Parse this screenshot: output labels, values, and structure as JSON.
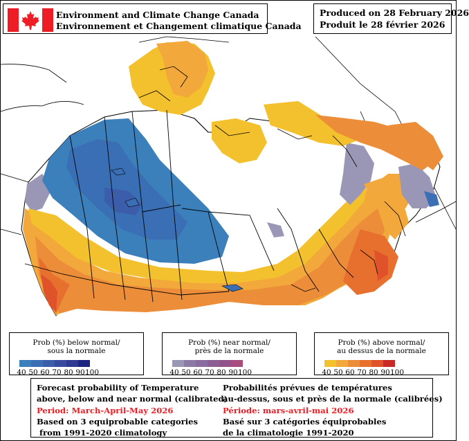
{
  "header": {
    "agency_en": "Environment and Climate Change Canada",
    "agency_fr": "Environnement et Changement climatique Canada",
    "produced_en": "Produced on 28 February 2026",
    "produced_fr": "Produit le 28 février 2026"
  },
  "legends": {
    "below": {
      "title_line1": "Prob (%) below normal/",
      "title_line2": "sous la normale",
      "ticks": [
        "40",
        "50",
        "60",
        "70",
        "80",
        "90",
        "100"
      ],
      "colors": [
        "#3b7fbb",
        "#3a6fb5",
        "#3c5daa",
        "#374aa0",
        "#2e3a92",
        "#1c2680"
      ]
    },
    "near": {
      "title_line1": "Prob (%) near normal/",
      "title_line2": "près de la normale",
      "ticks": [
        "40",
        "50",
        "60",
        "70",
        "80",
        "90",
        "100"
      ],
      "colors": [
        "#9a97b6",
        "#8b7aa6",
        "#8a6da0",
        "#8b5f94",
        "#92538a",
        "#a84b7d"
      ]
    },
    "above": {
      "title_line1": "Prob (%) above normal/",
      "title_line2": "au dessus de la normale",
      "ticks": [
        "40",
        "50",
        "60",
        "70",
        "80",
        "90",
        "100"
      ],
      "colors": [
        "#f2c12d",
        "#f2a83a",
        "#ec8d3a",
        "#e8702f",
        "#e0522a",
        "#c92a26"
      ]
    }
  },
  "map_colors": {
    "above_40": "#f2c12d",
    "above_50": "#f2a83a",
    "above_60": "#ec8d3a",
    "above_70": "#e8702f",
    "above_80": "#e0522a",
    "below_40": "#3b7fbb",
    "below_50": "#3a6fb5",
    "below_60": "#3c5daa",
    "near_40": "#9a97b6"
  },
  "info": {
    "en_line1": "Forecast probability of Temperature",
    "en_line2": "above, below and near normal (calibrated)",
    "en_period": "Period: March-April-May 2026",
    "en_line4": "Based on 3 equiprobable categories",
    "en_line5": " from 1991-2020 climatology",
    "fr_line1": "Probabilités prévues de températures",
    "fr_line2": "au-dessus, sous et près de la normale (calibrées)",
    "fr_period": "Période: mars-avril-mai 2026",
    "fr_line4": "Basé sur 3 catégories équiprobables",
    "fr_line5": "de la climatologie 1991-2020"
  }
}
